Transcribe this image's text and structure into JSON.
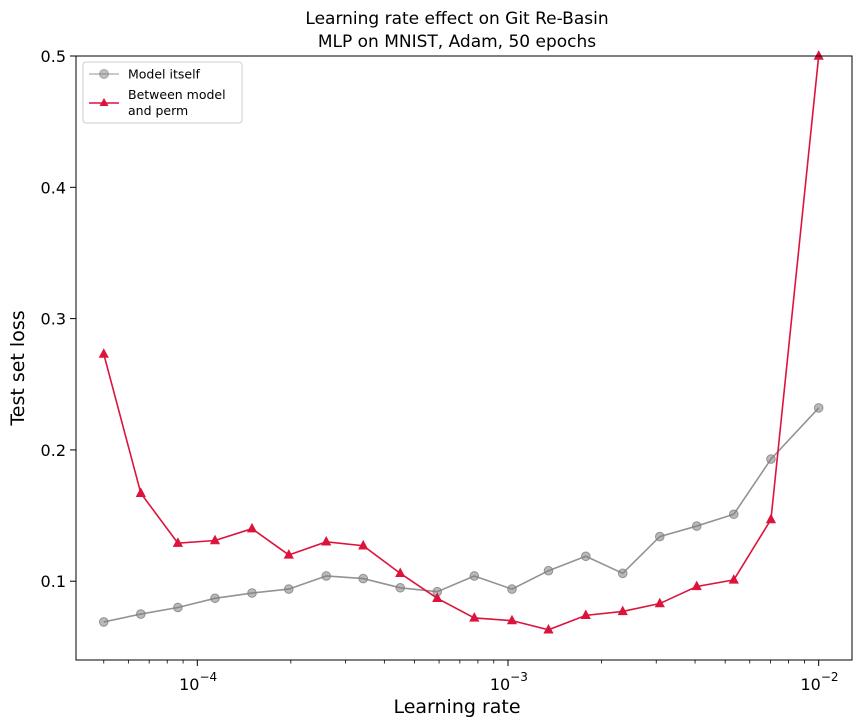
{
  "chart_data": {
    "type": "line",
    "title_line1": "Learning rate effect on Git Re-Basin",
    "title_line2": "MLP on MNIST, Adam, 50 epochs",
    "xlabel": "Learning rate",
    "ylabel": "Test set loss",
    "x_scale": "log",
    "xlim": [
      4.07e-05,
      0.0128
    ],
    "ylim": [
      0.04,
      0.5
    ],
    "y_ticks": [
      {
        "value": 0.1,
        "label": "0.1"
      },
      {
        "value": 0.2,
        "label": "0.2"
      },
      {
        "value": 0.3,
        "label": "0.3"
      },
      {
        "value": 0.4,
        "label": "0.4"
      },
      {
        "value": 0.5,
        "label": "0.5"
      }
    ],
    "x_major_ticks": [
      {
        "value": 0.0001,
        "base": "10",
        "exp": "−4"
      },
      {
        "value": 0.001,
        "base": "10",
        "exp": "−3"
      },
      {
        "value": 0.01,
        "base": "10",
        "exp": "−2"
      }
    ],
    "legend_placement": "top-left",
    "x": [
      5e-05,
      6.58e-05,
      8.66e-05,
      0.000114,
      0.00015,
      0.000197,
      0.00026,
      0.000342,
      0.00045,
      0.000592,
      0.000779,
      0.00103,
      0.00135,
      0.00178,
      0.00234,
      0.00308,
      0.00405,
      0.00533,
      0.00702,
      0.01
    ],
    "series": [
      {
        "name": "Model itself",
        "color": "#808080",
        "marker": "circle",
        "values": [
          0.069,
          0.075,
          0.08,
          0.087,
          0.091,
          0.094,
          0.104,
          0.102,
          0.095,
          0.092,
          0.104,
          0.094,
          0.108,
          0.119,
          0.106,
          0.134,
          0.142,
          0.151,
          0.193,
          0.232
        ]
      },
      {
        "name": "Between model\nand perm",
        "color": "#dc143c",
        "marker": "triangle",
        "values": [
          0.273,
          0.167,
          0.129,
          0.131,
          0.14,
          0.12,
          0.13,
          0.127,
          0.106,
          0.087,
          0.072,
          0.07,
          0.063,
          0.074,
          0.077,
          0.083,
          0.096,
          0.101,
          0.147,
          0.5
        ]
      }
    ]
  }
}
